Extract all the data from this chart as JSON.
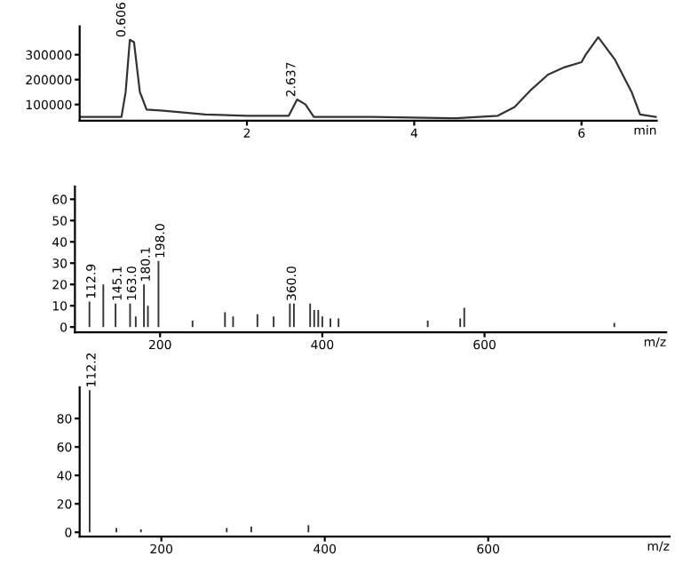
{
  "chart_data": [
    {
      "type": "line",
      "xlabel": "min",
      "xlim": [
        0,
        6.9
      ],
      "xticks": [
        2,
        4,
        6
      ],
      "ylim": [
        35000,
        414000
      ],
      "yticks": [
        100000,
        200000,
        300000
      ],
      "grid": false,
      "color": "#333333",
      "x": [
        0,
        0.5,
        0.55,
        0.6,
        0.65,
        0.72,
        0.8,
        1.0,
        1.5,
        2.0,
        2.5,
        2.6,
        2.7,
        2.8,
        3.5,
        4.5,
        5.0,
        5.2,
        5.4,
        5.6,
        5.8,
        6.0,
        6.05,
        6.2,
        6.4,
        6.6,
        6.7,
        6.9
      ],
      "values": [
        50000,
        50000,
        150000,
        360000,
        350000,
        150000,
        80000,
        75000,
        60000,
        55000,
        55000,
        120000,
        100000,
        50000,
        50000,
        45000,
        55000,
        90000,
        160000,
        220000,
        250000,
        270000,
        300000,
        370000,
        280000,
        150000,
        60000,
        50000
      ],
      "annotations": [
        {
          "text": "0.606",
          "x": 0.606,
          "y": 360000
        },
        {
          "text": "2.637",
          "x": 2.637,
          "y": 120000
        }
      ]
    },
    {
      "type": "bar",
      "xlabel": "m/z",
      "xlim": [
        95,
        824
      ],
      "xticks": [
        200,
        400,
        600
      ],
      "ylim": [
        -2.5,
        66
      ],
      "yticks": [
        0,
        10,
        20,
        30,
        40,
        50,
        60
      ],
      "grid": false,
      "color": "#333333",
      "x": [
        112.9,
        130,
        145.1,
        163.0,
        170,
        180.1,
        185,
        198.0,
        240,
        280,
        290,
        320,
        340,
        360.0,
        365,
        385,
        390,
        395,
        400,
        410,
        420,
        530,
        570,
        575,
        760
      ],
      "values": [
        12,
        20,
        11,
        11,
        5,
        20,
        10,
        31,
        3,
        7,
        5,
        6,
        5,
        11,
        11,
        11,
        8,
        8,
        5,
        4,
        4,
        3,
        4,
        9,
        2
      ],
      "annotations": [
        {
          "text": "112.9",
          "x": 112.9,
          "y": 12
        },
        {
          "text": "145.1",
          "x": 145.1,
          "y": 11
        },
        {
          "text": "163.0",
          "x": 163.0,
          "y": 11
        },
        {
          "text": "180.1",
          "x": 180.1,
          "y": 20
        },
        {
          "text": "198.0",
          "x": 198.0,
          "y": 31
        },
        {
          "text": "360.0",
          "x": 360.0,
          "y": 11
        }
      ]
    },
    {
      "type": "bar",
      "xlabel": "m/z",
      "xlim": [
        100,
        822
      ],
      "xticks": [
        200,
        400,
        600
      ],
      "ylim": [
        -3,
        102
      ],
      "yticks": [
        0,
        20,
        40,
        60,
        80
      ],
      "grid": false,
      "color": "#333333",
      "x": [
        112.2,
        145,
        175,
        280,
        310,
        380
      ],
      "values": [
        100,
        3,
        2,
        3,
        4,
        5
      ],
      "annotations": [
        {
          "text": "112.2",
          "x": 112.2,
          "y": 100
        }
      ]
    }
  ]
}
